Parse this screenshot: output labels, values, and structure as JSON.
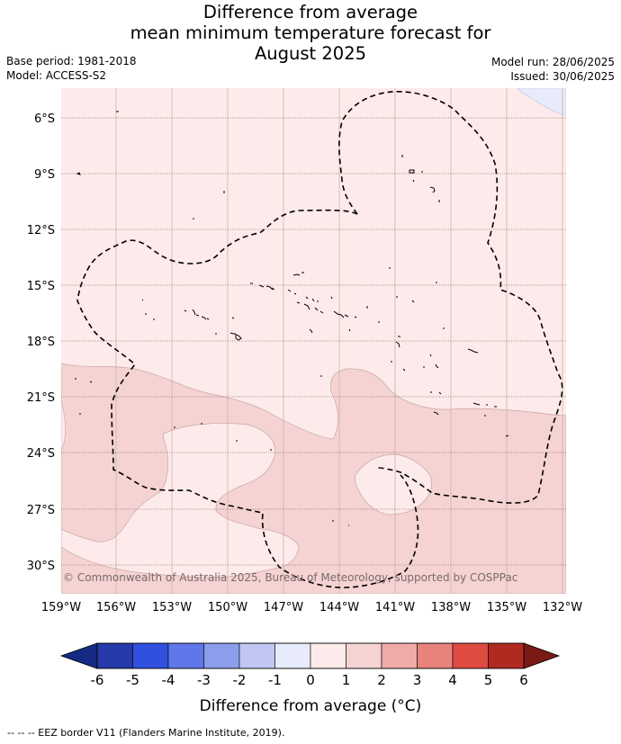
{
  "title": {
    "line1": "Difference from average",
    "line2": "mean minimum temperature forecast for",
    "line3": "August 2025"
  },
  "meta": {
    "base_period": "Base period: 1981-2018",
    "model": "Model: ACCESS-S2",
    "model_run": "Model run: 28/06/2025",
    "issued": "Issued: 30/06/2025"
  },
  "map": {
    "lat_labels": [
      "6°S",
      "9°S",
      "12°S",
      "15°S",
      "18°S",
      "21°S",
      "24°S",
      "27°S",
      "30°S"
    ],
    "lon_labels": [
      "159°W",
      "156°W",
      "153°W",
      "150°W",
      "147°W",
      "144°W",
      "141°W",
      "138°W",
      "135°W",
      "132°W"
    ],
    "copyright": "© Commonwealth of Australia 2025, Bureau of Meteorology, supported by COSPPac"
  },
  "colorbar": {
    "tick_labels": [
      "-6",
      "-5",
      "-4",
      "-3",
      "-2",
      "-1",
      "0",
      "1",
      "2",
      "3",
      "4",
      "5",
      "6"
    ],
    "colors": [
      "#253aa8",
      "#3150e0",
      "#5f77e8",
      "#8b9deb",
      "#c0c7f3",
      "#e8ebfb",
      "#fcebea",
      "#f4d3d2",
      "#eeaba7",
      "#e8837c",
      "#dd4b41",
      "#b12a22"
    ],
    "low_extend_color": "#142a85",
    "high_extend_color": "#7a1a15",
    "label": "Difference from average (°C)"
  },
  "legend": {
    "eez_text": "--  --  -- EEZ border V11 (Flanders Marine Institute, 2019)."
  }
}
